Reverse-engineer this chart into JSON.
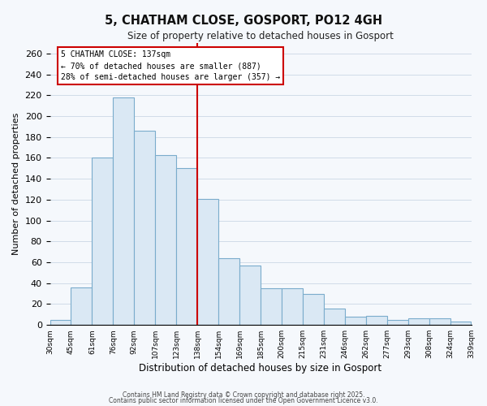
{
  "title": "5, CHATHAM CLOSE, GOSPORT, PO12 4GH",
  "subtitle": "Size of property relative to detached houses in Gosport",
  "xlabel": "Distribution of detached houses by size in Gosport",
  "ylabel": "Number of detached properties",
  "bar_labels": [
    "30sqm",
    "45sqm",
    "61sqm",
    "76sqm",
    "92sqm",
    "107sqm",
    "123sqm",
    "138sqm",
    "154sqm",
    "169sqm",
    "185sqm",
    "200sqm",
    "215sqm",
    "231sqm",
    "246sqm",
    "262sqm",
    "277sqm",
    "293sqm",
    "308sqm",
    "324sqm",
    "339sqm"
  ],
  "bar_heights": [
    5,
    36,
    160,
    218,
    186,
    163,
    150,
    121,
    64,
    57,
    35,
    35,
    30,
    16,
    8,
    9,
    5,
    6,
    6,
    3
  ],
  "bar_color": "#dae8f4",
  "bar_edge_color": "#7aaccc",
  "vline_x": 7,
  "vline_color": "#cc0000",
  "annotation_title": "5 CHATHAM CLOSE: 137sqm",
  "annotation_line1": "← 70% of detached houses are smaller (887)",
  "annotation_line2": "28% of semi-detached houses are larger (357) →",
  "ylim": [
    0,
    270
  ],
  "yticks": [
    0,
    20,
    40,
    60,
    80,
    100,
    120,
    140,
    160,
    180,
    200,
    220,
    240,
    260
  ],
  "footer1": "Contains HM Land Registry data © Crown copyright and database right 2025.",
  "footer2": "Contains public sector information licensed under the Open Government Licence v3.0.",
  "bg_color": "#f5f8fc",
  "plot_bg_color": "#f5f8fc",
  "grid_color": "#d0dce8"
}
